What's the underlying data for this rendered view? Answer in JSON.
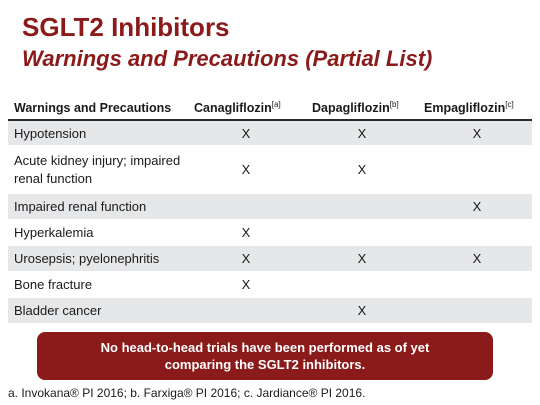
{
  "slide": {
    "title": "SGLT2 Inhibitors",
    "subtitle": "Warnings and Precautions (Partial List)"
  },
  "table": {
    "headers": [
      {
        "label": "Warnings and Precautions",
        "ref": ""
      },
      {
        "label": "Canagliflozin",
        "ref": "[a]"
      },
      {
        "label": "Dapagliflozin",
        "ref": "[b]"
      },
      {
        "label": "Empagliflozin",
        "ref": "[c]"
      }
    ],
    "rows": [
      {
        "label": "Hypotension",
        "cana": "X",
        "dapa": "X",
        "empa": "X"
      },
      {
        "label": "Acute kidney injury; impaired renal function",
        "cana": "X",
        "dapa": "X",
        "empa": ""
      },
      {
        "label": "Impaired renal function",
        "cana": "",
        "dapa": "",
        "empa": "X"
      },
      {
        "label": "Hyperkalemia",
        "cana": "X",
        "dapa": "",
        "empa": ""
      },
      {
        "label": "Urosepsis; pyelonephritis",
        "cana": "X",
        "dapa": "X",
        "empa": "X"
      },
      {
        "label": "Bone fracture",
        "cana": "X",
        "dapa": "",
        "empa": ""
      },
      {
        "label": "Bladder cancer",
        "cana": "",
        "dapa": "X",
        "empa": ""
      }
    ]
  },
  "banner": {
    "line1": "No head-to-head trials have been performed as of yet",
    "line2": "comparing the SGLT2 inhibitors."
  },
  "footnote": "a. Invokana® PI 2016; b. Farxiga® PI 2016; c. Jardiance® PI 2016.",
  "colors": {
    "accent": "#8b1a1a",
    "row_shade": "#e6e7e9"
  }
}
